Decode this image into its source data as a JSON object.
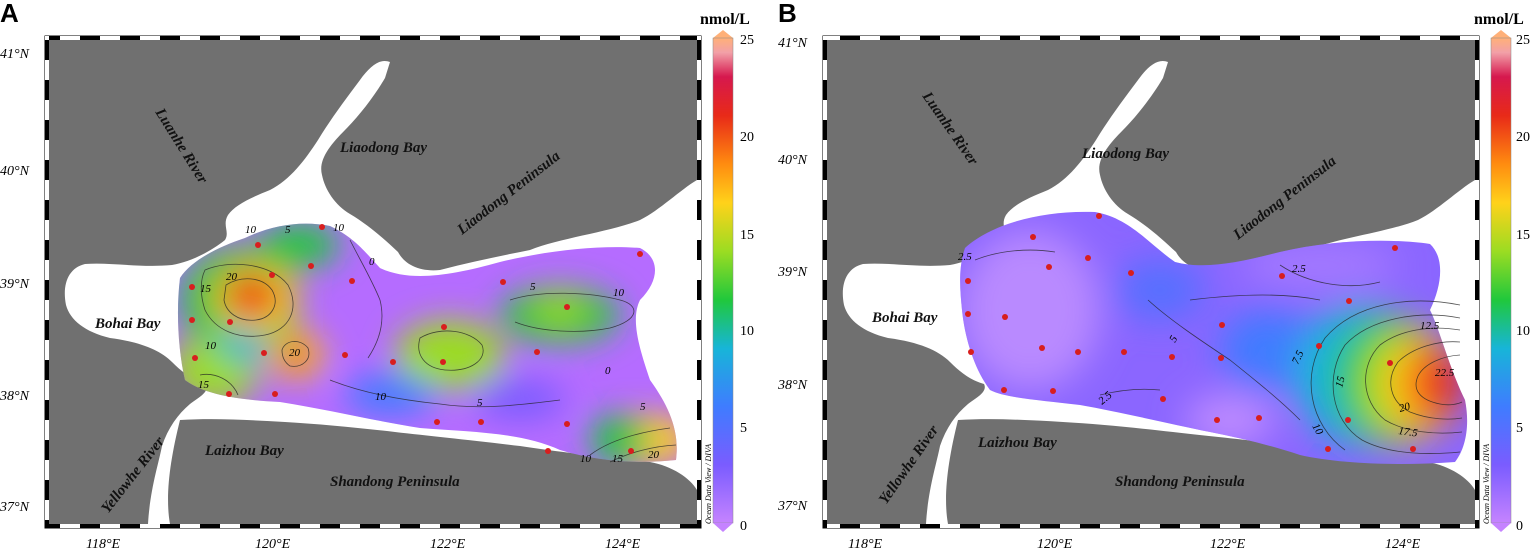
{
  "panels": [
    {
      "letter": "A",
      "colorbar_unit": "nmol/L",
      "colorbar_ticks": [
        "25",
        "20",
        "15",
        "10",
        "5",
        "0"
      ],
      "lat_labels": [
        "41°N",
        "40°N",
        "39°N",
        "38°N",
        "37°N"
      ],
      "lon_labels": [
        "118°E",
        "120°E",
        "122°E",
        "124°E"
      ],
      "places": {
        "liaodong_bay": "Liaodong Bay",
        "liaodong_peninsula": "Liaodong Peninsula",
        "bohai_bay": "Bohai Bay",
        "laizhou_bay": "Laizhou Bay",
        "shandong_peninsula": "Shandong Peninsula",
        "luanhe_river": "Luanhe River",
        "yellowhe_river": "Yellowhe River"
      },
      "credit": "Ocean Data View / DIVA",
      "contour_labels": [
        "10",
        "5",
        "10",
        "0",
        "5",
        "10",
        "15",
        "20",
        "20",
        "10",
        "15",
        "0",
        "10",
        "5",
        "5",
        "10",
        "15",
        "20"
      ]
    },
    {
      "letter": "B",
      "colorbar_unit": "nmol/L",
      "colorbar_ticks": [
        "25",
        "20",
        "15",
        "10",
        "5",
        "0"
      ],
      "lat_labels": [
        "41°N",
        "40°N",
        "39°N",
        "38°N",
        "37°N"
      ],
      "lon_labels": [
        "118°E",
        "120°E",
        "122°E",
        "124°E"
      ],
      "places": {
        "liaodong_bay": "Liaodong Bay",
        "liaodong_peninsula": "Liaodong Peninsula",
        "bohai_bay": "Bohai Bay",
        "laizhou_bay": "Laizhou Bay",
        "shandong_peninsula": "Shandong Peninsula",
        "luanhe_river": "Luanhe River",
        "yellowhe_river": "Yellowhe River"
      },
      "credit": "Ocean Data View / DIVA",
      "contour_labels": [
        "2.5",
        "2.5",
        "5",
        "12.5",
        "7.5",
        "15",
        "22.5",
        "20",
        "10",
        "17.5",
        "2.5"
      ]
    }
  ],
  "colors": {
    "land": "#707070",
    "water": "#ffffff",
    "station": "#d81e1e",
    "colorscale": [
      "#c583ff",
      "#7a5cff",
      "#3f7cff",
      "#17b5d8",
      "#20c83c",
      "#9bdc22",
      "#ffd21a",
      "#ff8c10",
      "#e82a18",
      "#d6184e",
      "#f2a0a8",
      "#ffb078"
    ]
  }
}
